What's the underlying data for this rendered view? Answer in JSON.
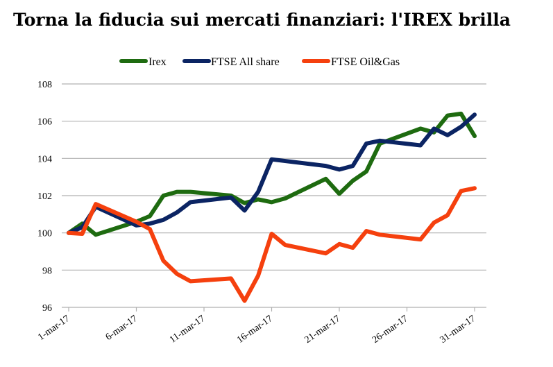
{
  "colors": {
    "irex": "#1e6b10",
    "ftse_all_share": "#0b2463",
    "ftse_oil_gas": "#f5400e",
    "grid": "#b0b0b0"
  },
  "chart_data": {
    "type": "line",
    "title": "Torna la fiducia sui mercati finanziari: l'IREX brilla",
    "xlabel": "",
    "ylabel": "",
    "ylim": [
      96,
      108
    ],
    "yticks": [
      "96",
      "98",
      "100",
      "102",
      "104",
      "106",
      "108"
    ],
    "xlim": [
      "2017-03-01",
      "2017-03-31"
    ],
    "xticks": [
      {
        "label": "1-mar-17",
        "date": "2017-03-01"
      },
      {
        "label": "6-mar-17",
        "date": "2017-03-06"
      },
      {
        "label": "11-mar-17",
        "date": "2017-03-11"
      },
      {
        "label": "16-mar-17",
        "date": "2017-03-16"
      },
      {
        "label": "21-mar-17",
        "date": "2017-03-21"
      },
      {
        "label": "26-mar-17",
        "date": "2017-03-26"
      },
      {
        "label": "31-mar-17",
        "date": "2017-03-31"
      }
    ],
    "grid": true,
    "legend_position": "top-center",
    "series": [
      {
        "name": "Irex",
        "color_key": "irex",
        "points": [
          {
            "x": "2017-03-01",
            "y": 100.0
          },
          {
            "x": "2017-03-02",
            "y": 100.5
          },
          {
            "x": "2017-03-03",
            "y": 99.9
          },
          {
            "x": "2017-03-06",
            "y": 100.6
          },
          {
            "x": "2017-03-07",
            "y": 100.9
          },
          {
            "x": "2017-03-08",
            "y": 102.0
          },
          {
            "x": "2017-03-09",
            "y": 102.2
          },
          {
            "x": "2017-03-10",
            "y": 102.2
          },
          {
            "x": "2017-03-13",
            "y": 102.0
          },
          {
            "x": "2017-03-14",
            "y": 101.6
          },
          {
            "x": "2017-03-15",
            "y": 101.8
          },
          {
            "x": "2017-03-16",
            "y": 101.65
          },
          {
            "x": "2017-03-17",
            "y": 101.85
          },
          {
            "x": "2017-03-20",
            "y": 102.9
          },
          {
            "x": "2017-03-21",
            "y": 102.1
          },
          {
            "x": "2017-03-22",
            "y": 102.8
          },
          {
            "x": "2017-03-23",
            "y": 103.3
          },
          {
            "x": "2017-03-24",
            "y": 104.8
          },
          {
            "x": "2017-03-27",
            "y": 105.6
          },
          {
            "x": "2017-03-28",
            "y": 105.4
          },
          {
            "x": "2017-03-29",
            "y": 106.3
          },
          {
            "x": "2017-03-30",
            "y": 106.4
          },
          {
            "x": "2017-03-31",
            "y": 105.2
          }
        ]
      },
      {
        "name": "FTSE All share",
        "color_key": "ftse_all_share",
        "points": [
          {
            "x": "2017-03-01",
            "y": 100.0
          },
          {
            "x": "2017-03-02",
            "y": 100.3
          },
          {
            "x": "2017-03-03",
            "y": 101.4
          },
          {
            "x": "2017-03-06",
            "y": 100.4
          },
          {
            "x": "2017-03-07",
            "y": 100.5
          },
          {
            "x": "2017-03-08",
            "y": 100.7
          },
          {
            "x": "2017-03-09",
            "y": 101.1
          },
          {
            "x": "2017-03-10",
            "y": 101.65
          },
          {
            "x": "2017-03-13",
            "y": 101.9
          },
          {
            "x": "2017-03-14",
            "y": 101.2
          },
          {
            "x": "2017-03-15",
            "y": 102.2
          },
          {
            "x": "2017-03-16",
            "y": 103.95
          },
          {
            "x": "2017-03-20",
            "y": 103.6
          },
          {
            "x": "2017-03-21",
            "y": 103.4
          },
          {
            "x": "2017-03-22",
            "y": 103.6
          },
          {
            "x": "2017-03-23",
            "y": 104.8
          },
          {
            "x": "2017-03-24",
            "y": 104.95
          },
          {
            "x": "2017-03-27",
            "y": 104.7
          },
          {
            "x": "2017-03-28",
            "y": 105.6
          },
          {
            "x": "2017-03-29",
            "y": 105.25
          },
          {
            "x": "2017-03-30",
            "y": 105.7
          },
          {
            "x": "2017-03-31",
            "y": 106.35
          }
        ]
      },
      {
        "name": "FTSE Oil&Gas",
        "color_key": "ftse_oil_gas",
        "points": [
          {
            "x": "2017-03-01",
            "y": 100.0
          },
          {
            "x": "2017-03-02",
            "y": 99.95
          },
          {
            "x": "2017-03-03",
            "y": 101.55
          },
          {
            "x": "2017-03-06",
            "y": 100.6
          },
          {
            "x": "2017-03-07",
            "y": 100.2
          },
          {
            "x": "2017-03-08",
            "y": 98.5
          },
          {
            "x": "2017-03-09",
            "y": 97.8
          },
          {
            "x": "2017-03-10",
            "y": 97.4
          },
          {
            "x": "2017-03-13",
            "y": 97.55
          },
          {
            "x": "2017-03-14",
            "y": 96.35
          },
          {
            "x": "2017-03-15",
            "y": 97.7
          },
          {
            "x": "2017-03-16",
            "y": 99.95
          },
          {
            "x": "2017-03-17",
            "y": 99.35
          },
          {
            "x": "2017-03-20",
            "y": 98.9
          },
          {
            "x": "2017-03-21",
            "y": 99.4
          },
          {
            "x": "2017-03-22",
            "y": 99.2
          },
          {
            "x": "2017-03-23",
            "y": 100.1
          },
          {
            "x": "2017-03-24",
            "y": 99.9
          },
          {
            "x": "2017-03-27",
            "y": 99.65
          },
          {
            "x": "2017-03-28",
            "y": 100.55
          },
          {
            "x": "2017-03-29",
            "y": 100.95
          },
          {
            "x": "2017-03-30",
            "y": 102.25
          },
          {
            "x": "2017-03-31",
            "y": 102.4
          }
        ]
      }
    ]
  }
}
